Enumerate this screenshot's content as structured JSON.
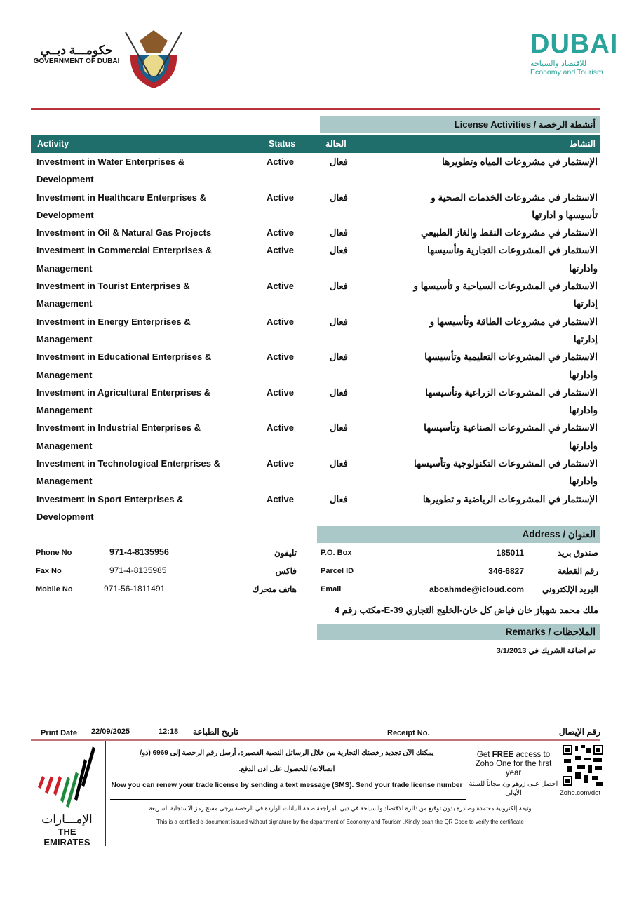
{
  "header": {
    "gov_ar": "حكومـــة دبــي",
    "gov_en": "GOVERNMENT OF DUBAI",
    "dubai_logo": "DUBAI",
    "det_ar": "للاقتصاد والسياحة",
    "det_en": "Economy and Tourism"
  },
  "activities": {
    "section_title": "أنشطة الرخصة  /  License Activities",
    "col_activity": "Activity",
    "col_status": "Status",
    "col_status_ar": "الحالة",
    "col_activity_ar": "النشاط",
    "rows": [
      {
        "en": "Investment in Water Enterprises & Development",
        "status": "Active",
        "status_ar": "فعال",
        "ar": "الإستثمار في مشروعات المياه وتطويرها"
      },
      {
        "en": "Investment in Healthcare Enterprises & Development",
        "status": "Active",
        "status_ar": "فعال",
        "ar": "الاستثمار في مشروعات الخدمات الصحية و تأسيسها و ادارتها"
      },
      {
        "en": "Investment in Oil & Natural Gas Projects",
        "status": "Active",
        "status_ar": "فعال",
        "ar": "الاستثمار في مشروعات النفط والغاز الطبيعي"
      },
      {
        "en": "Investment in Commercial Enterprises & Management",
        "status": "Active",
        "status_ar": "فعال",
        "ar": "الاستثمار في المشروعات  التجارية وتأسيسها وادارتها"
      },
      {
        "en": "Investment in Tourist Enterprises & Management",
        "status": "Active",
        "status_ar": "فعال",
        "ar": "الاستثمار في المشروعات السياحية و تأسيسها و إدارتها"
      },
      {
        "en": "Investment in Energy Enterprises & Management",
        "status": "Active",
        "status_ar": "فعال",
        "ar": "الاستثمار في مشروعات الطاقة وتأسيسها و إدارتها"
      },
      {
        "en": "Investment in Educational Enterprises & Management",
        "status": "Active",
        "status_ar": "فعال",
        "ar": "الاستثمار في المشروعات التعليمية وتأسيسها وادارتها"
      },
      {
        "en": "Investment in Agricultural Enterprises & Management",
        "status": "Active",
        "status_ar": "فعال",
        "ar": "الاستثمار في المشروعات  الزراعية وتأسيسها وادارتها"
      },
      {
        "en": "Investment in Industrial Enterprises & Management",
        "status": "Active",
        "status_ar": "فعال",
        "ar": "الاستثمار في المشروعات  الصناعية وتأسيسها وادارتها"
      },
      {
        "en": "Investment in Technological Enterprises & Management",
        "status": "Active",
        "status_ar": "فعال",
        "ar": "الاستثمار في المشروعات التكنولوجية وتأسيسها وادارتها"
      },
      {
        "en": "Investment in Sport Enterprises & Development",
        "status": "Active",
        "status_ar": "فعال",
        "ar": "الإستثمار في المشروعات الرياضية و تطويرها"
      }
    ]
  },
  "contact": {
    "phone_label": "Phone No",
    "phone": "971-4-8135956",
    "phone_ar": "تليفون",
    "fax_label": "Fax No",
    "fax": "971-4-8135985",
    "fax_ar": "فاكس",
    "mobile_label": "Mobile No",
    "mobile": "971-56-1811491",
    "mobile_ar": "هاتف متحرك"
  },
  "address": {
    "title": "العنوان  /  Address",
    "pobox_label": "P.O. Box",
    "pobox": "185011",
    "pobox_ar": "صندوق بريد",
    "parcel_label": "Parcel ID",
    "parcel": "346-6827",
    "parcel_ar": "رقم القطعة",
    "email_label": "Email",
    "email": "aboahmde@icloud.com",
    "email_ar": "البريد الإلكتروني",
    "line": "ملك محمد شهباز خان فياض كل خان-الخليج التجاري 39-E-مكتب رقم 4"
  },
  "remarks": {
    "title": "الملاحظات / Remarks",
    "text": "تم اضافة الشريك في 3/1/2013"
  },
  "footer": {
    "print_date_label": "Print Date",
    "print_date": "22/09/2025",
    "print_time": "12:18",
    "print_date_ar": "تاريخ الطباعة",
    "receipt_label": "Receipt No.",
    "receipt_ar": "رقم الإيصال",
    "sms_ar": "يمكنك الآن تجديد رخصتك التجارية من خلال الرسائل النصية القصيرة، أرسل رقم الرخصة إلى 6969 (دو/ اتصالات) للحصول على اذن الدفع.",
    "sms_en": "Now you can renew your trade license by sending a text message (SMS).  Send your trade license number to 6969 (Du / Etisalat) to receive payment voucher",
    "zoho_en_1": "Get ",
    "zoho_en_free": "FREE",
    "zoho_en_2": " access to Zoho One for the first year",
    "zoho_ar": "احصل على زوهو ون مجاناً للسنة الأولى",
    "zoho_url": "Zoho.com/det",
    "cert_ar": "وثيقة إلكترونية معتمدة وصادرة بدون توقيع من دائرة الاقتصاد والسياحة في دبي .لمراجعة صحة البيانات الواردة في الرخصة يرجى مسح رمز الاستجابة السريعة",
    "cert_en": "This is a certified e-document issued without signature by the department of Economy and Tourism .Kindly scan the QR Code to verify the certificate",
    "emirates_ar": "الإمـــارات",
    "emirates_en": "THE EMIRATES"
  },
  "colors": {
    "dark_teal": "#1f6e6b",
    "light_teal": "#a9c8c7",
    "red_rule": "#b8343a",
    "dubai_teal": "#2aa39a"
  }
}
